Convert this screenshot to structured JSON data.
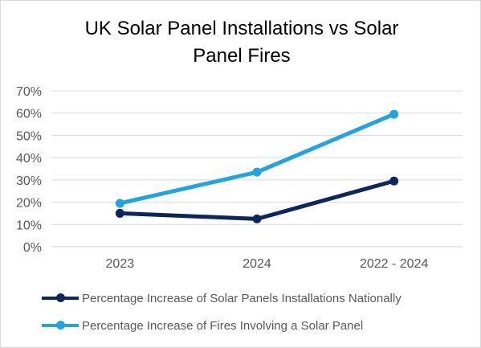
{
  "chart_data": {
    "type": "line",
    "title": "UK Solar Panel Installations vs Solar Panel Fires",
    "xlabel": "",
    "ylabel": "",
    "categories": [
      "2023",
      "2024",
      "2022 - 2024"
    ],
    "ylim": [
      0,
      70
    ],
    "yticks": [
      "0%",
      "10%",
      "20%",
      "30%",
      "40%",
      "50%",
      "60%",
      "70%"
    ],
    "grid": true,
    "legend_position": "bottom",
    "series": [
      {
        "name": "Percentage Increase of Solar Panels Installations Nationally",
        "values": [
          15,
          12.5,
          29.5
        ],
        "color": "#0e2660"
      },
      {
        "name": "Percentage Increase of Fires Involving a Solar Panel",
        "values": [
          19.5,
          33.5,
          59.5
        ],
        "color": "#21a4e0"
      }
    ]
  }
}
